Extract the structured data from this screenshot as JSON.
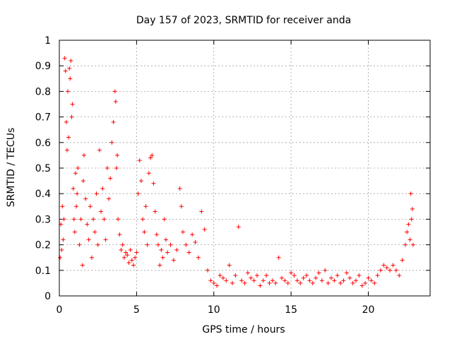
{
  "chart_data": {
    "type": "scatter",
    "title": "Day 157 of 2023, SRMTID for receiver anda",
    "xlabel": "GPS time / hours",
    "ylabel": "SRMTID / TECUs",
    "xlim": [
      0,
      24
    ],
    "ylim": [
      0,
      1
    ],
    "xticks": [
      0,
      5,
      10,
      15,
      20
    ],
    "yticks": [
      0,
      0.1,
      0.2,
      0.3,
      0.4,
      0.5,
      0.6,
      0.7,
      0.8,
      0.9,
      1
    ],
    "grid": true,
    "marker": "+",
    "color": "#ff0000",
    "series": [
      {
        "name": "SRMTID",
        "points": [
          [
            0.05,
            0.15
          ],
          [
            0.1,
            0.28
          ],
          [
            0.15,
            0.18
          ],
          [
            0.2,
            0.35
          ],
          [
            0.25,
            0.22
          ],
          [
            0.3,
            0.3
          ],
          [
            0.35,
            0.93
          ],
          [
            0.4,
            0.88
          ],
          [
            0.45,
            0.68
          ],
          [
            0.5,
            0.57
          ],
          [
            0.55,
            0.8
          ],
          [
            0.6,
            0.62
          ],
          [
            0.65,
            0.89
          ],
          [
            0.7,
            0.85
          ],
          [
            0.75,
            0.92
          ],
          [
            0.8,
            0.7
          ],
          [
            0.85,
            0.75
          ],
          [
            0.9,
            0.42
          ],
          [
            0.95,
            0.3
          ],
          [
            1.0,
            0.25
          ],
          [
            1.05,
            0.48
          ],
          [
            1.1,
            0.35
          ],
          [
            1.15,
            0.4
          ],
          [
            1.2,
            0.5
          ],
          [
            1.3,
            0.2
          ],
          [
            1.4,
            0.3
          ],
          [
            1.5,
            0.12
          ],
          [
            1.55,
            0.45
          ],
          [
            1.6,
            0.55
          ],
          [
            1.7,
            0.38
          ],
          [
            1.8,
            0.28
          ],
          [
            1.9,
            0.22
          ],
          [
            2.0,
            0.35
          ],
          [
            2.1,
            0.15
          ],
          [
            2.2,
            0.3
          ],
          [
            2.3,
            0.25
          ],
          [
            2.4,
            0.4
          ],
          [
            2.5,
            0.2
          ],
          [
            2.6,
            0.57
          ],
          [
            2.7,
            0.33
          ],
          [
            2.8,
            0.42
          ],
          [
            2.9,
            0.3
          ],
          [
            3.0,
            0.22
          ],
          [
            3.1,
            0.5
          ],
          [
            3.2,
            0.38
          ],
          [
            3.3,
            0.46
          ],
          [
            3.4,
            0.6
          ],
          [
            3.5,
            0.68
          ],
          [
            3.6,
            0.8
          ],
          [
            3.65,
            0.76
          ],
          [
            3.7,
            0.5
          ],
          [
            3.75,
            0.55
          ],
          [
            3.8,
            0.3
          ],
          [
            3.9,
            0.24
          ],
          [
            4.0,
            0.18
          ],
          [
            4.1,
            0.2
          ],
          [
            4.2,
            0.15
          ],
          [
            4.3,
            0.17
          ],
          [
            4.4,
            0.16
          ],
          [
            4.5,
            0.13
          ],
          [
            4.6,
            0.18
          ],
          [
            4.7,
            0.14
          ],
          [
            4.8,
            0.12
          ],
          [
            4.9,
            0.15
          ],
          [
            5.0,
            0.17
          ],
          [
            5.1,
            0.4
          ],
          [
            5.2,
            0.53
          ],
          [
            5.3,
            0.45
          ],
          [
            5.4,
            0.3
          ],
          [
            5.5,
            0.25
          ],
          [
            5.6,
            0.35
          ],
          [
            5.7,
            0.2
          ],
          [
            5.8,
            0.48
          ],
          [
            5.9,
            0.54
          ],
          [
            6.0,
            0.55
          ],
          [
            6.1,
            0.44
          ],
          [
            6.2,
            0.33
          ],
          [
            6.3,
            0.24
          ],
          [
            6.4,
            0.2
          ],
          [
            6.5,
            0.12
          ],
          [
            6.6,
            0.18
          ],
          [
            6.7,
            0.15
          ],
          [
            6.8,
            0.3
          ],
          [
            6.9,
            0.22
          ],
          [
            7.0,
            0.17
          ],
          [
            7.2,
            0.2
          ],
          [
            7.4,
            0.14
          ],
          [
            7.6,
            0.18
          ],
          [
            7.8,
            0.42
          ],
          [
            7.9,
            0.35
          ],
          [
            8.0,
            0.25
          ],
          [
            8.2,
            0.2
          ],
          [
            8.4,
            0.17
          ],
          [
            8.6,
            0.24
          ],
          [
            8.8,
            0.21
          ],
          [
            9.0,
            0.15
          ],
          [
            9.2,
            0.33
          ],
          [
            9.4,
            0.26
          ],
          [
            9.6,
            0.1
          ],
          [
            9.8,
            0.06
          ],
          [
            10.0,
            0.05
          ],
          [
            10.2,
            0.04
          ],
          [
            10.4,
            0.08
          ],
          [
            10.6,
            0.07
          ],
          [
            10.8,
            0.06
          ],
          [
            11.0,
            0.12
          ],
          [
            11.2,
            0.05
          ],
          [
            11.4,
            0.08
          ],
          [
            11.6,
            0.27
          ],
          [
            11.8,
            0.06
          ],
          [
            12.0,
            0.05
          ],
          [
            12.2,
            0.09
          ],
          [
            12.4,
            0.07
          ],
          [
            12.6,
            0.06
          ],
          [
            12.8,
            0.08
          ],
          [
            13.0,
            0.04
          ],
          [
            13.2,
            0.06
          ],
          [
            13.4,
            0.08
          ],
          [
            13.6,
            0.05
          ],
          [
            13.8,
            0.06
          ],
          [
            14.0,
            0.05
          ],
          [
            14.2,
            0.15
          ],
          [
            14.4,
            0.07
          ],
          [
            14.6,
            0.06
          ],
          [
            14.8,
            0.05
          ],
          [
            15.0,
            0.09
          ],
          [
            15.2,
            0.08
          ],
          [
            15.4,
            0.06
          ],
          [
            15.6,
            0.05
          ],
          [
            15.8,
            0.07
          ],
          [
            16.0,
            0.08
          ],
          [
            16.2,
            0.06
          ],
          [
            16.4,
            0.05
          ],
          [
            16.6,
            0.07
          ],
          [
            16.8,
            0.09
          ],
          [
            17.0,
            0.06
          ],
          [
            17.2,
            0.1
          ],
          [
            17.4,
            0.05
          ],
          [
            17.6,
            0.07
          ],
          [
            17.8,
            0.06
          ],
          [
            18.0,
            0.08
          ],
          [
            18.2,
            0.05
          ],
          [
            18.4,
            0.06
          ],
          [
            18.6,
            0.09
          ],
          [
            18.8,
            0.07
          ],
          [
            19.0,
            0.05
          ],
          [
            19.2,
            0.06
          ],
          [
            19.4,
            0.08
          ],
          [
            19.6,
            0.04
          ],
          [
            19.8,
            0.05
          ],
          [
            20.0,
            0.07
          ],
          [
            20.2,
            0.06
          ],
          [
            20.4,
            0.05
          ],
          [
            20.6,
            0.08
          ],
          [
            20.8,
            0.1
          ],
          [
            21.0,
            0.12
          ],
          [
            21.2,
            0.11
          ],
          [
            21.4,
            0.1
          ],
          [
            21.6,
            0.12
          ],
          [
            21.8,
            0.1
          ],
          [
            22.0,
            0.08
          ],
          [
            22.2,
            0.14
          ],
          [
            22.4,
            0.2
          ],
          [
            22.5,
            0.25
          ],
          [
            22.6,
            0.28
          ],
          [
            22.7,
            0.22
          ],
          [
            22.75,
            0.4
          ],
          [
            22.8,
            0.3
          ],
          [
            22.85,
            0.34
          ],
          [
            22.9,
            0.2
          ]
        ]
      }
    ]
  }
}
